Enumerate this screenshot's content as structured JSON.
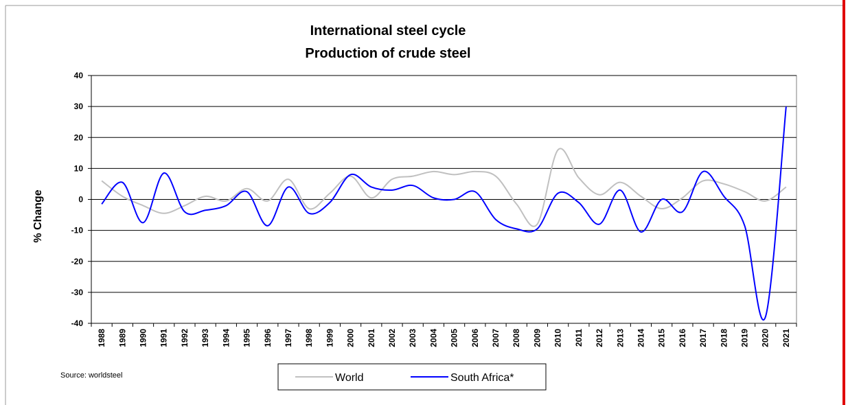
{
  "chart_data": {
    "type": "line",
    "title": [
      "International steel cycle",
      "Production of crude steel"
    ],
    "y_label": "% Change",
    "source": "Source: worldsteel",
    "categories": [
      "1988",
      "1989",
      "1990",
      "1991",
      "1992",
      "1993",
      "1994",
      "1995",
      "1996",
      "1997",
      "1998",
      "1999",
      "2000",
      "2001",
      "2002",
      "2003",
      "2004",
      "2005",
      "2006",
      "2007",
      "2008",
      "2009",
      "2010",
      "2011",
      "2012",
      "2013",
      "2014",
      "2015",
      "2016",
      "2017",
      "2018",
      "2019",
      "2020",
      "2021"
    ],
    "series": [
      {
        "name": "World",
        "color": "#c0c0c0",
        "values": [
          6,
          1,
          -2,
          -4.5,
          -2,
          1,
          -0.5,
          3.5,
          -0.5,
          6.5,
          -3,
          2,
          7.5,
          0.5,
          6.5,
          7.5,
          9,
          8,
          9,
          7.5,
          -1.5,
          -8,
          16,
          7,
          1.5,
          5.5,
          1,
          -3,
          0.5,
          6,
          5,
          2.5,
          -0.5,
          4
        ]
      },
      {
        "name": "South Africa*",
        "color": "#0000ff",
        "values": [
          -1.5,
          5.5,
          -7.5,
          8.5,
          -4,
          -3.5,
          -2,
          2.5,
          -8.5,
          4,
          -4.5,
          -1,
          8,
          4,
          3,
          4.5,
          0.5,
          0,
          2.5,
          -6.5,
          -9.5,
          -9.5,
          2,
          -1,
          -8,
          3,
          -10.5,
          0,
          -4,
          9,
          1,
          -8.5,
          -38,
          30
        ]
      }
    ],
    "ylim": [
      -40,
      40
    ],
    "yticks": [
      -40,
      -30,
      -20,
      -10,
      0,
      10,
      20,
      30,
      40
    ],
    "grid": true
  }
}
